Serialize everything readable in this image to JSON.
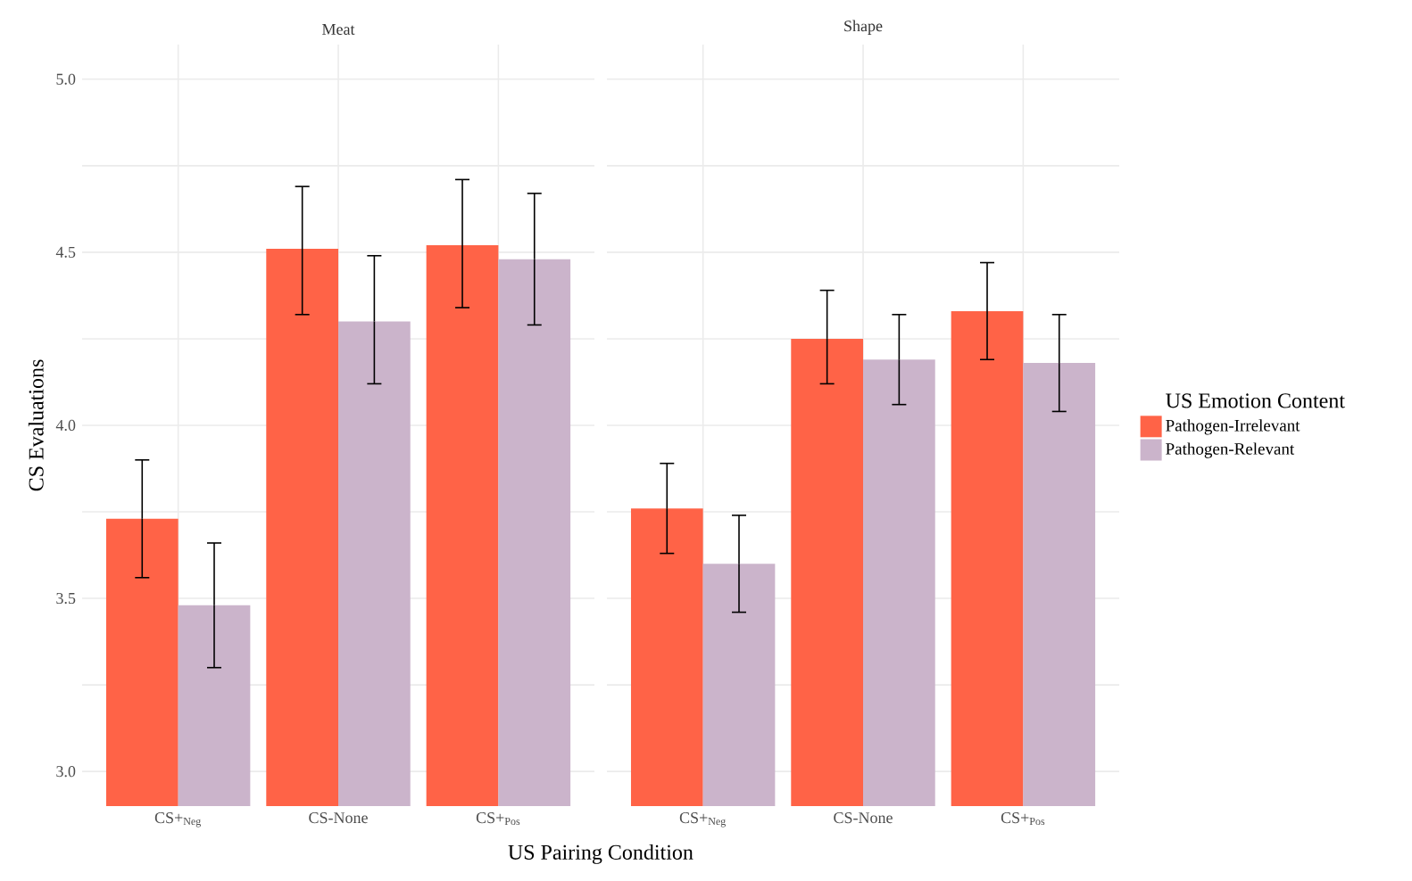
{
  "chart_data": [
    {
      "type": "bar",
      "title": "Meat",
      "xlabel": "US Pairing Condition",
      "ylabel": "CS Evaluations",
      "categories": [
        "CS+$_{Neg}$",
        "CS-None",
        "CS+$_{Pos}$"
      ],
      "ylim": [
        2.9,
        5.1
      ],
      "yticks": [
        {
          "value": 3,
          "label": "3.0"
        },
        {
          "value": 3.25,
          "label": null
        },
        3.5,
        {
          "value": 3.75,
          "label": null
        },
        {
          "value": 4,
          "label": "4.0"
        },
        {
          "value": 4.25,
          "label": null
        },
        4.5,
        {
          "value": 4.75,
          "label": null
        },
        {
          "value": 5,
          "label": "5.0"
        }
      ],
      "grid": true,
      "series": [
        {
          "color": "#ff6347",
          "values": [
            3.73,
            4.51,
            4.52
          ],
          "errors": [
            [
              3.56,
              3.9
            ],
            [
              4.32,
              4.69
            ],
            [
              4.34,
              4.71
            ]
          ]
        },
        {
          "color": "#cbb4cb",
          "values": [
            3.48,
            4.3,
            4.48
          ],
          "errors": [
            [
              3.3,
              3.66
            ],
            [
              4.12,
              4.49
            ],
            [
              4.29,
              4.67
            ]
          ]
        }
      ]
    },
    {
      "type": "bar",
      "title": "Shape",
      "legend_title": "US Emotion Content",
      "legend": "right",
      "tick_labels": "x",
      "categories": [
        "CS+$_{Neg}$",
        "CS-None",
        "CS+$_{Pos}$"
      ],
      "ylim": [
        2.9,
        5.1
      ],
      "yticks": [
        3,
        3.25,
        3.5,
        3.75,
        4,
        4.25,
        4.5,
        4.75,
        5
      ],
      "grid": true,
      "series": [
        {
          "name": "Pathogen-Irrelevant",
          "color": "#ff6347",
          "values": [
            3.76,
            4.25,
            4.33
          ],
          "errors": [
            [
              3.63,
              3.89
            ],
            [
              4.12,
              4.39
            ],
            [
              4.19,
              4.47
            ]
          ]
        },
        {
          "name": "Pathogen-Relevant",
          "color": "#cbb4cb",
          "values": [
            3.6,
            4.19,
            4.18
          ],
          "errors": [
            [
              3.46,
              3.74
            ],
            [
              4.06,
              4.32
            ],
            [
              4.04,
              4.32
            ]
          ]
        }
      ]
    }
  ]
}
